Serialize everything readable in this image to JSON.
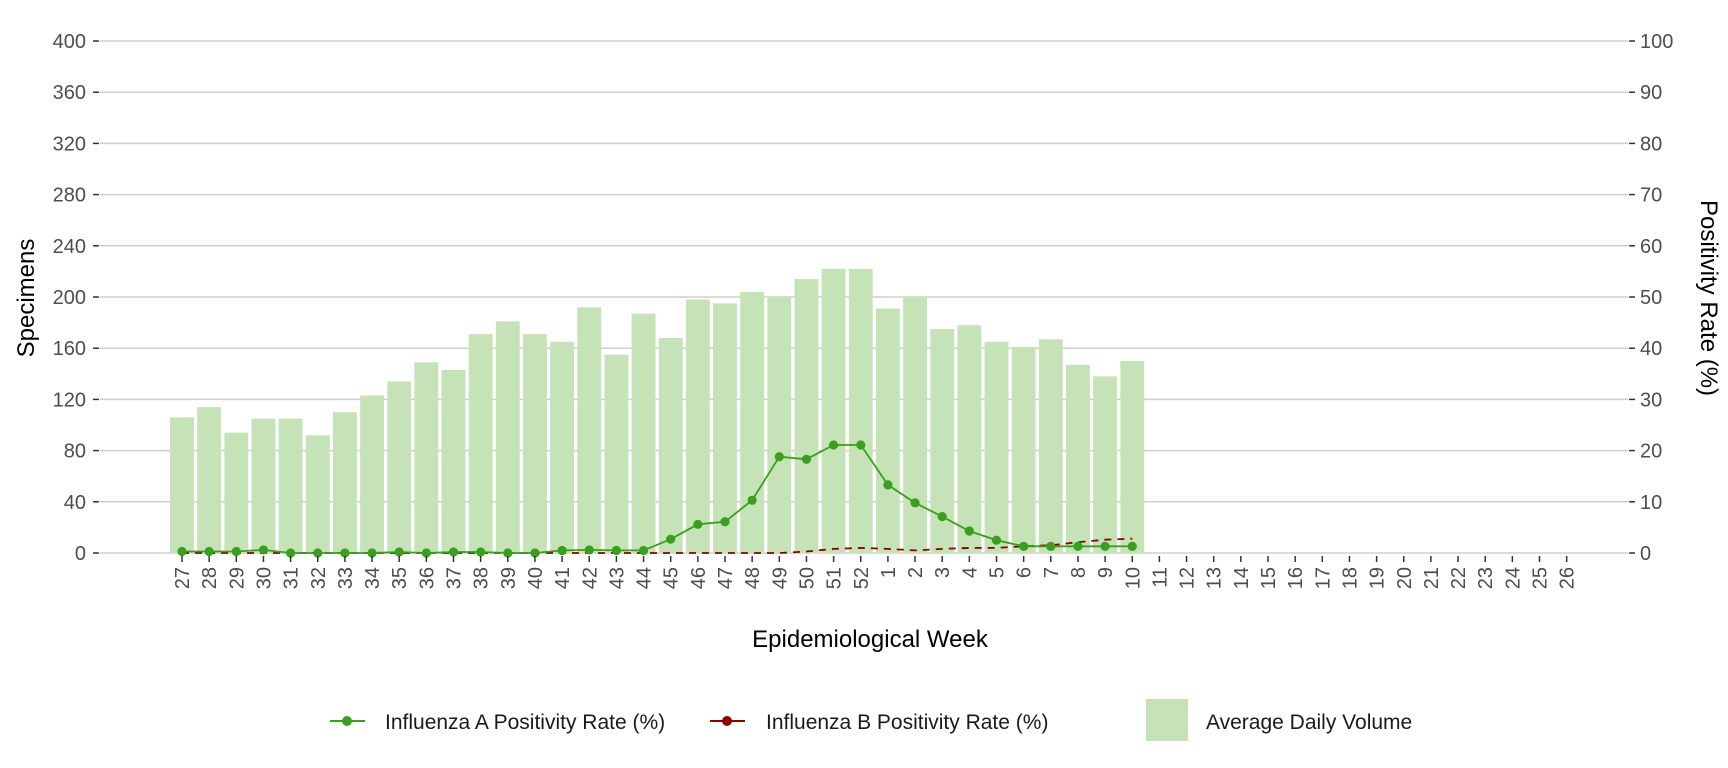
{
  "chart_data": {
    "type": "bar",
    "categories": [
      "27",
      "28",
      "29",
      "30",
      "31",
      "32",
      "33",
      "34",
      "35",
      "36",
      "37",
      "38",
      "39",
      "40",
      "41",
      "42",
      "43",
      "44",
      "45",
      "46",
      "47",
      "48",
      "49",
      "50",
      "51",
      "52",
      "1",
      "2",
      "3",
      "4",
      "5",
      "6",
      "7",
      "8",
      "9",
      "10",
      "11",
      "12",
      "13",
      "14",
      "15",
      "16",
      "17",
      "18",
      "19",
      "20",
      "21",
      "22",
      "23",
      "24",
      "25",
      "26"
    ],
    "xlabel": "Epidemiological Week",
    "ylabel": "Specimens",
    "y2label": "Positivity Rate (%)",
    "ylim": [
      0,
      400
    ],
    "y2lim": [
      0,
      100
    ],
    "yticks": [
      0,
      40,
      80,
      120,
      160,
      200,
      240,
      280,
      320,
      360,
      400
    ],
    "y2ticks": [
      0,
      10,
      20,
      30,
      40,
      50,
      60,
      70,
      80,
      90,
      100
    ],
    "grid": true,
    "legend_position": "bottom",
    "series": [
      {
        "name": "Average Daily Volume",
        "kind": "bar",
        "axis": "left",
        "color": "#c6e3b8",
        "values": [
          106,
          114,
          94,
          105,
          105,
          92,
          110,
          123,
          134,
          149,
          143,
          171,
          181,
          171,
          165,
          192,
          155,
          187,
          168,
          198,
          195,
          204,
          200,
          214,
          222,
          222,
          191,
          200,
          175,
          178,
          165,
          161,
          167,
          147,
          138,
          150,
          null,
          null,
          null,
          null,
          null,
          null,
          null,
          null,
          null,
          null,
          null,
          null,
          null,
          null,
          null,
          null
        ]
      },
      {
        "name": "Influenza A Positivity Rate (%)",
        "kind": "line",
        "axis": "right",
        "color": "#3a9e1e",
        "values": [
          0.3,
          0.3,
          0.3,
          0.6,
          0,
          0,
          0,
          0,
          0.2,
          0,
          0.2,
          0.2,
          0,
          0,
          0.5,
          0.6,
          0.5,
          0.5,
          2.7,
          5.6,
          6.1,
          10.3,
          18.8,
          18.3,
          21.1,
          21.1,
          13.3,
          9.8,
          7.1,
          4.3,
          2.5,
          1.3,
          1.3,
          1.3,
          1.3,
          1.3,
          null,
          null,
          null,
          null,
          null,
          null,
          null,
          null,
          null,
          null,
          null,
          null,
          null,
          null,
          null,
          null
        ]
      },
      {
        "name": "Influenza B Positivity Rate (%)",
        "kind": "line",
        "axis": "right",
        "color": "#8b0000",
        "values": [
          0,
          0,
          0,
          0,
          0,
          0,
          0,
          0,
          0,
          0,
          0,
          0,
          0,
          0,
          0,
          0,
          0,
          0,
          0,
          0,
          0,
          0,
          0,
          0.3,
          0.8,
          1.0,
          0.8,
          0.5,
          0.8,
          1.0,
          1.0,
          1.3,
          1.5,
          2.1,
          2.6,
          2.8,
          null,
          null,
          null,
          null,
          null,
          null,
          null,
          null,
          null,
          null,
          null,
          null,
          null,
          null,
          null,
          null
        ]
      }
    ]
  }
}
